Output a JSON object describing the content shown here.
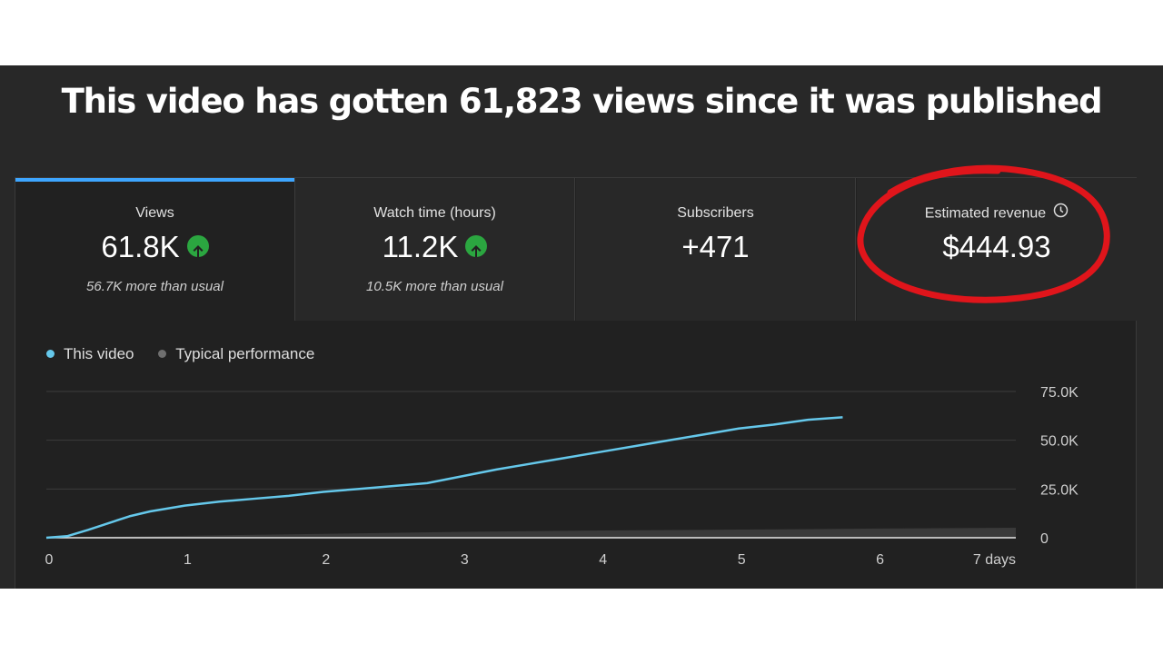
{
  "headline": "This video has gotten 61,823 views since it was published",
  "metrics": [
    {
      "label": "Views",
      "value": "61.8K",
      "trend": "up-arrow-icon",
      "note": "56.7K more than usual"
    },
    {
      "label": "Watch time (hours)",
      "value": "11.2K",
      "trend": "up-arrow-icon",
      "note": "10.5K more than usual"
    },
    {
      "label": "Subscribers",
      "value": "+471",
      "note": ""
    },
    {
      "label": "Estimated revenue",
      "value": "$444.93",
      "note": "",
      "icon": "clock-icon"
    }
  ],
  "legend": [
    {
      "name": "This video",
      "color": "#65c8eb"
    },
    {
      "name": "Typical performance",
      "color": "#6f6f6f"
    }
  ],
  "colors": {
    "accent": "#3ea6ff",
    "positive": "#2ba640",
    "annotation": "#e0151b"
  },
  "chart_data": {
    "type": "line",
    "x_ticks": [
      "0",
      "1",
      "2",
      "3",
      "4",
      "5",
      "6",
      "7 days"
    ],
    "y_ticks": [
      "0",
      "25.0K",
      "50.0K",
      "75.0K"
    ],
    "ylim": [
      0,
      75000
    ],
    "xlim": [
      0,
      7
    ],
    "series": [
      {
        "name": "This video",
        "color": "#65c8eb",
        "x": [
          0,
          0.15,
          0.3,
          0.45,
          0.6,
          0.75,
          1.0,
          1.25,
          1.5,
          1.75,
          2.0,
          2.25,
          2.5,
          2.75,
          3.0,
          3.25,
          3.5,
          3.75,
          4.0,
          4.25,
          4.5,
          4.75,
          5.0,
          5.25,
          5.5,
          5.75
        ],
        "y": [
          0,
          800,
          4000,
          7500,
          11000,
          13500,
          16500,
          18500,
          20000,
          21500,
          23500,
          25000,
          26500,
          28000,
          31500,
          35000,
          38000,
          41000,
          44000,
          47000,
          50000,
          53000,
          56000,
          58000,
          60500,
          61800
        ]
      },
      {
        "name": "Typical performance",
        "color": "#6f6f6f",
        "x": [
          0,
          1,
          2,
          3,
          4,
          5,
          6,
          7
        ],
        "y": [
          0,
          1000,
          2000,
          3000,
          3700,
          4200,
          4700,
          5100
        ]
      }
    ]
  }
}
